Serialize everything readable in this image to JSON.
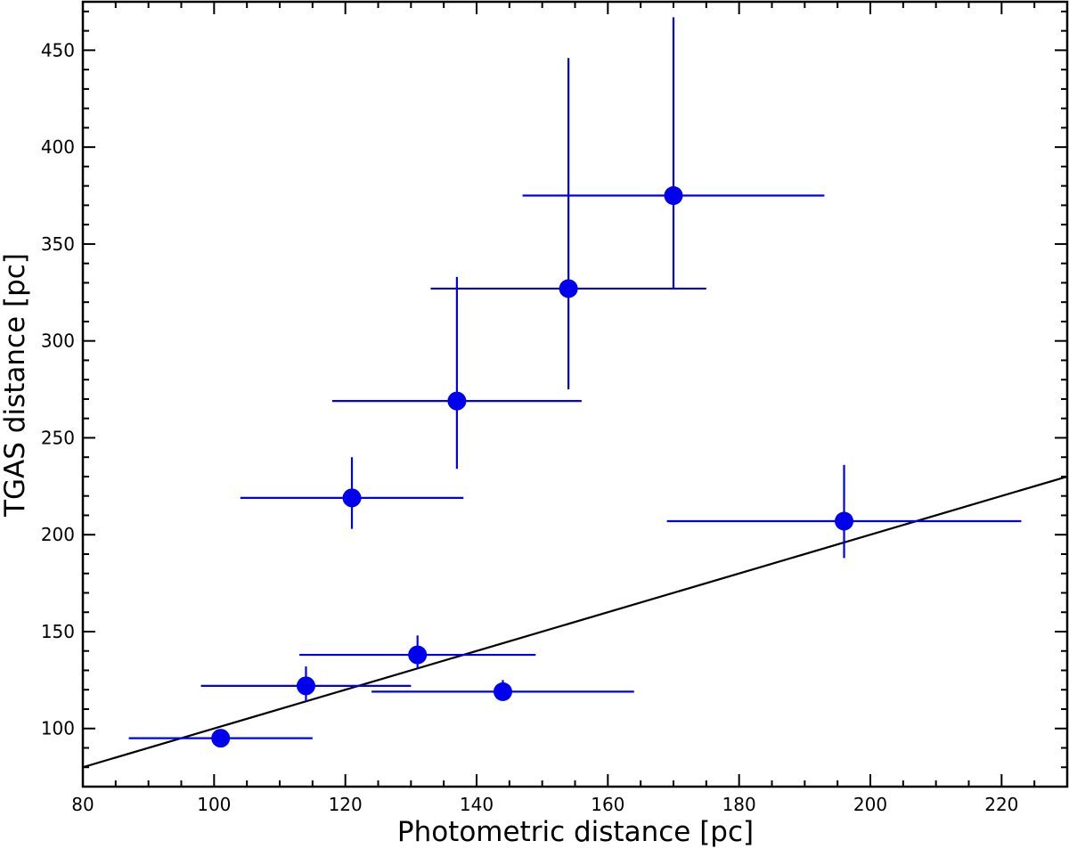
{
  "chart_data": {
    "type": "scatter",
    "xlabel": "Photometric distance [pc]",
    "ylabel": "TGAS distance [pc]",
    "xlim": [
      80,
      230
    ],
    "ylim": [
      70,
      475
    ],
    "x_ticks": [
      80,
      100,
      120,
      140,
      160,
      180,
      200,
      220
    ],
    "x_tick_labels": [
      "80",
      "100",
      "120",
      "140",
      "160",
      "180",
      "200",
      "220"
    ],
    "x_minor_step": 5,
    "y_ticks": [
      100,
      150,
      200,
      250,
      300,
      350,
      400,
      450
    ],
    "y_tick_labels": [
      "100",
      "150",
      "200",
      "250",
      "300",
      "350",
      "400",
      "450"
    ],
    "y_minor_step": 10,
    "grid": false,
    "legend": "none",
    "marker_color": "#0000ee",
    "line_color": "#000000",
    "points": [
      {
        "x": 101,
        "y": 95,
        "x_err_lo": 14,
        "x_err_hi": 14,
        "y_err_lo": 2,
        "y_err_hi": 2
      },
      {
        "x": 114,
        "y": 122,
        "x_err_lo": 16,
        "x_err_hi": 16,
        "y_err_lo": 8,
        "y_err_hi": 10
      },
      {
        "x": 131,
        "y": 138,
        "x_err_lo": 18,
        "x_err_hi": 18,
        "y_err_lo": 7,
        "y_err_hi": 10
      },
      {
        "x": 144,
        "y": 119,
        "x_err_lo": 20,
        "x_err_hi": 20,
        "y_err_lo": 2,
        "y_err_hi": 6
      },
      {
        "x": 121,
        "y": 219,
        "x_err_lo": 17,
        "x_err_hi": 17,
        "y_err_lo": 16,
        "y_err_hi": 21
      },
      {
        "x": 137,
        "y": 269,
        "x_err_lo": 19,
        "x_err_hi": 19,
        "y_err_lo": 35,
        "y_err_hi": 64
      },
      {
        "x": 154,
        "y": 327,
        "x_err_lo": 21,
        "x_err_hi": 21,
        "y_err_lo": 52,
        "y_err_hi": 119
      },
      {
        "x": 170,
        "y": 375,
        "x_err_lo": 23,
        "x_err_hi": 23,
        "y_err_lo": 48,
        "y_err_hi": 92
      },
      {
        "x": 196,
        "y": 207,
        "x_err_lo": 27,
        "x_err_hi": 27,
        "y_err_lo": 19,
        "y_err_hi": 29
      }
    ],
    "reference_line": {
      "slope": 1,
      "intercept": 0
    }
  }
}
